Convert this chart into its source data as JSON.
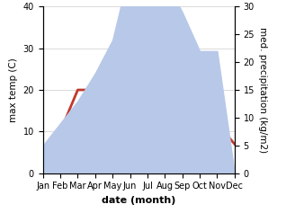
{
  "months": [
    "Jan",
    "Feb",
    "Mar",
    "Apr",
    "May",
    "Jun",
    "Jul",
    "Aug",
    "Sep",
    "Oct",
    "Nov",
    "Dec"
  ],
  "max_temp": [
    5,
    10,
    20,
    20,
    25,
    33,
    35,
    35,
    28,
    20,
    12,
    7
  ],
  "precipitation": [
    5,
    9,
    13,
    18,
    24,
    37,
    32,
    35,
    29,
    22,
    22,
    0
  ],
  "temp_color": "#c0392b",
  "precip_fill_color": "#b8c8e8",
  "temp_ylim": [
    0,
    40
  ],
  "precip_ylim": [
    0,
    30
  ],
  "xlabel": "date (month)",
  "ylabel_left": "max temp (C)",
  "ylabel_right": "med. precipitation (kg/m2)",
  "temp_linewidth": 2.0,
  "xlabel_fontsize": 8,
  "ylabel_fontsize": 7.5,
  "tick_fontsize": 7
}
